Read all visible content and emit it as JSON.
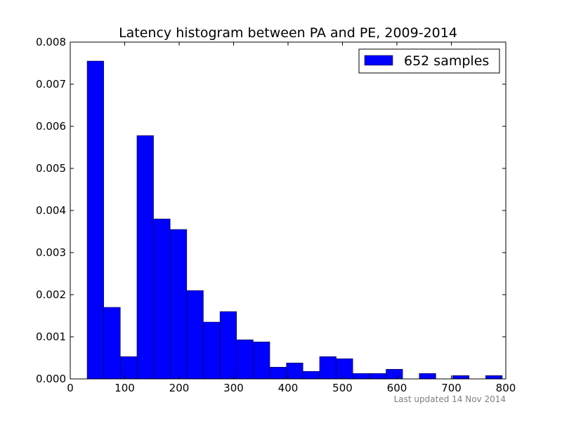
{
  "chart_data": {
    "type": "bar",
    "title": "Latency histogram between PA and PE, 2009-2014",
    "xlabel": "",
    "ylabel": "",
    "xlim": [
      0,
      800
    ],
    "ylim": [
      0,
      0.008
    ],
    "xticks": [
      0,
      100,
      200,
      300,
      400,
      500,
      600,
      700,
      800
    ],
    "xtick_labels": [
      "0",
      "100",
      "200",
      "300",
      "400",
      "500",
      "600",
      "700",
      "800"
    ],
    "yticks": [
      0,
      0.001,
      0.002,
      0.003,
      0.004,
      0.005,
      0.006,
      0.007,
      0.008
    ],
    "ytick_labels": [
      "0.000",
      "0.001",
      "0.002",
      "0.003",
      "0.004",
      "0.005",
      "0.006",
      "0.007",
      "0.008"
    ],
    "grid": false,
    "legend_position": "top-right",
    "series": [
      {
        "name": "652 samples",
        "color": "#0000ff",
        "bins": [
          {
            "start": 31,
            "end": 61.5,
            "value": 0.00755
          },
          {
            "start": 61.5,
            "end": 92,
            "value": 0.0017
          },
          {
            "start": 92,
            "end": 122.5,
            "value": 0.00053
          },
          {
            "start": 122.5,
            "end": 153,
            "value": 0.00578
          },
          {
            "start": 153,
            "end": 183.5,
            "value": 0.0038
          },
          {
            "start": 183.5,
            "end": 214,
            "value": 0.00355
          },
          {
            "start": 214,
            "end": 244.5,
            "value": 0.0021
          },
          {
            "start": 244.5,
            "end": 275,
            "value": 0.00135
          },
          {
            "start": 275,
            "end": 305.5,
            "value": 0.0016
          },
          {
            "start": 305.5,
            "end": 336,
            "value": 0.00093
          },
          {
            "start": 336,
            "end": 366.5,
            "value": 0.00088
          },
          {
            "start": 366.5,
            "end": 397,
            "value": 0.00028
          },
          {
            "start": 397,
            "end": 427.5,
            "value": 0.00038
          },
          {
            "start": 427.5,
            "end": 458,
            "value": 0.00018
          },
          {
            "start": 458,
            "end": 488.5,
            "value": 0.00053
          },
          {
            "start": 488.5,
            "end": 519,
            "value": 0.00048
          },
          {
            "start": 519,
            "end": 549.5,
            "value": 0.00013
          },
          {
            "start": 549.5,
            "end": 580,
            "value": 0.00013
          },
          {
            "start": 580,
            "end": 610.5,
            "value": 0.00023
          },
          {
            "start": 610.5,
            "end": 641,
            "value": 0
          },
          {
            "start": 641,
            "end": 671.5,
            "value": 0.00013
          },
          {
            "start": 671.5,
            "end": 702,
            "value": 0
          },
          {
            "start": 702,
            "end": 732.5,
            "value": 8e-05
          },
          {
            "start": 732.5,
            "end": 763,
            "value": 0
          },
          {
            "start": 763,
            "end": 793.5,
            "value": 8e-05
          }
        ]
      }
    ]
  },
  "footer": {
    "updated": "Last updated 14 Nov 2014"
  }
}
